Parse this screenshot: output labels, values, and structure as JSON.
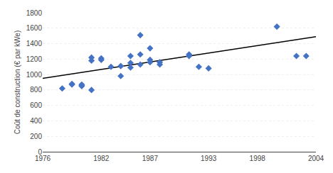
{
  "chart_data": {
    "type": "scatter",
    "y_label": "Coût de construction (€ par kWe)",
    "series": [
      {
        "type": "scatter",
        "marker": "diamond",
        "color": "#4472C4",
        "x": [
          1978,
          1979,
          1979,
          1980,
          1980,
          1980,
          1981,
          1981,
          1981,
          1982,
          1982,
          1983,
          1984,
          1984,
          1985,
          1985,
          1985,
          1986,
          1986,
          1986,
          1987,
          1987,
          1987,
          1988,
          1988,
          1991,
          1991,
          1992,
          1993,
          2000,
          2002,
          2003
        ],
        "values": [
          820,
          870,
          880,
          870,
          850,
          860,
          800,
          1180,
          1220,
          1190,
          1210,
          1100,
          1110,
          980,
          1240,
          1090,
          1150,
          1510,
          1260,
          1130,
          1190,
          1160,
          1340,
          1160,
          1130,
          1260,
          1240,
          1100,
          1080,
          1620,
          1240,
          1240
        ]
      },
      {
        "type": "line",
        "line_style": "solid",
        "color": "#000000",
        "x": [
          1976,
          2004
        ],
        "values": [
          950,
          1490
        ]
      }
    ],
    "xlim": [
      1976,
      2004
    ],
    "ylim": [
      0,
      1800
    ],
    "xticks": [
      1976,
      1982,
      1987,
      1993,
      1998,
      2004
    ],
    "yticks": [
      0,
      200,
      400,
      600,
      800,
      1000,
      1200,
      1400,
      1600,
      1800
    ],
    "grid": true
  }
}
